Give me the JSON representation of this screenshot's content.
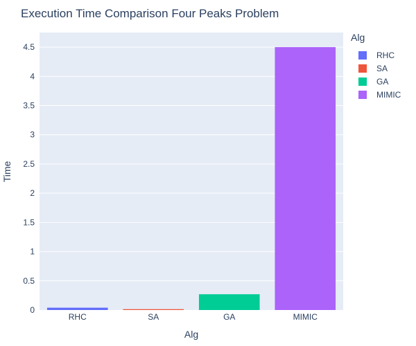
{
  "chart_data": {
    "type": "bar",
    "title": "Execution Time Comparison Four Peaks Problem",
    "xlabel": "Alg",
    "ylabel": "Time",
    "categories": [
      "RHC",
      "SA",
      "GA",
      "MIMIC"
    ],
    "series": [
      {
        "name": "RHC",
        "values": [
          0.04,
          null,
          null,
          null
        ],
        "color": "#636efa"
      },
      {
        "name": "SA",
        "values": [
          null,
          0.015,
          null,
          null
        ],
        "color": "#ef553b"
      },
      {
        "name": "GA",
        "values": [
          null,
          null,
          0.27,
          null
        ],
        "color": "#00cc96"
      },
      {
        "name": "MIMIC",
        "values": [
          null,
          null,
          null,
          4.5
        ],
        "color": "#ab63fa"
      }
    ],
    "ylim": [
      0,
      4.75
    ],
    "yticks": [
      "0",
      "0.5",
      "1",
      "1.5",
      "2",
      "2.5",
      "3",
      "3.5",
      "4",
      "4.5"
    ],
    "ytick_values": [
      0,
      0.5,
      1,
      1.5,
      2,
      2.5,
      3,
      3.5,
      4,
      4.5
    ],
    "grid": true,
    "legend": {
      "title": "Alg",
      "placement": "right"
    },
    "plot_background": "#e5ecf6"
  }
}
